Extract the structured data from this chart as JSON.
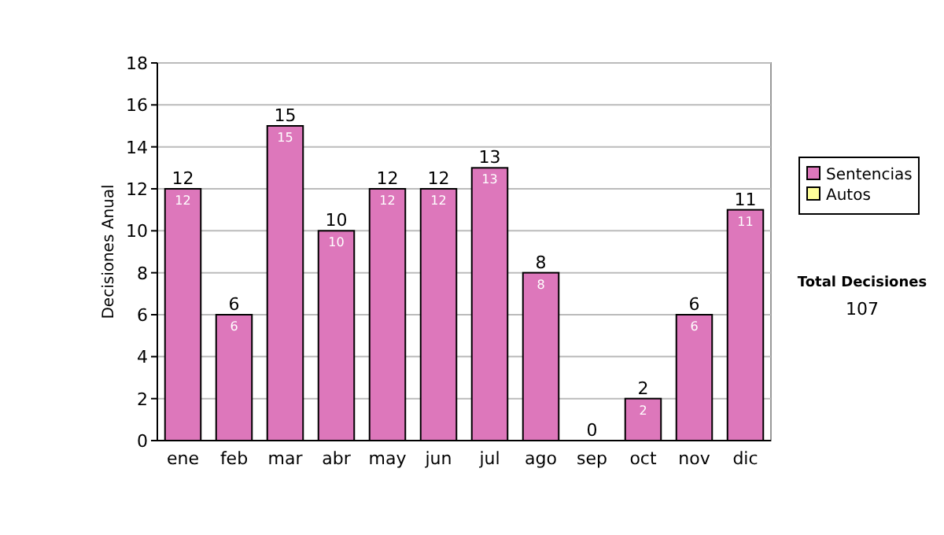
{
  "chart_data": {
    "type": "bar",
    "ylabel": "Decisiones Anual",
    "categories": [
      "ene",
      "feb",
      "mar",
      "abr",
      "may",
      "jun",
      "jul",
      "ago",
      "sep",
      "oct",
      "nov",
      "dic"
    ],
    "stacked": true,
    "series": [
      {
        "name": "Sentencias",
        "color": "#dd77bb",
        "values": [
          12,
          6,
          15,
          10,
          12,
          12,
          13,
          8,
          0,
          2,
          6,
          11
        ],
        "value_labels": [
          "12",
          "6",
          "15",
          "10",
          "12",
          "12",
          "13",
          "8",
          null,
          "2",
          "6",
          "11"
        ]
      },
      {
        "name": "Autos",
        "color": "#ffff99",
        "values": [
          0,
          0,
          0,
          0,
          0,
          0,
          0,
          0,
          0,
          0,
          0,
          0
        ]
      }
    ],
    "totals": [
      "12",
      "6",
      "15",
      "10",
      "12",
      "12",
      "13",
      "8",
      "0",
      "2",
      "6",
      "11"
    ],
    "ylim": [
      0,
      18
    ],
    "yticks": [
      0,
      2,
      4,
      6,
      8,
      10,
      12,
      14,
      16,
      18
    ],
    "grid": "y",
    "legend": "right",
    "annotations": [
      "Total Decisiones",
      "107"
    ]
  }
}
